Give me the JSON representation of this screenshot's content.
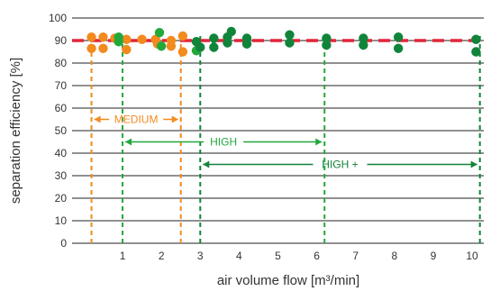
{
  "chart_data": {
    "type": "scatter",
    "title": "",
    "xlabel": "air volume flow [m³/min]",
    "ylabel": "separation efficiency [%]",
    "xlim": [
      -0.3,
      10.3
    ],
    "ylim": [
      0,
      100
    ],
    "x_ticks": [
      1,
      2,
      3,
      4,
      5,
      6,
      7,
      8,
      9,
      10
    ],
    "y_ticks": [
      0,
      10,
      20,
      30,
      40,
      50,
      60,
      70,
      80,
      90,
      100
    ],
    "grid": "horizontal",
    "reference_line": {
      "y": 90,
      "color": "#e2263a",
      "style": "dashed"
    },
    "colors": {
      "medium": "#f28a1e",
      "high": "#23a83c",
      "high_plus": "#10843a"
    },
    "ranges": [
      {
        "label": "MEDIUM",
        "from": 0.2,
        "to": 2.5,
        "y": 55,
        "color": "#f28a1e"
      },
      {
        "label": "HIGH",
        "from": 1.0,
        "to": 6.2,
        "y": 45,
        "color": "#23a83c"
      },
      {
        "label": "HIGH +",
        "from": 3.0,
        "to": 10.2,
        "y": 35,
        "color": "#10843a"
      }
    ],
    "vertical_markers": [
      {
        "x": 0.2,
        "color": "#f28a1e"
      },
      {
        "x": 2.5,
        "color": "#f28a1e"
      },
      {
        "x": 1.0,
        "color": "#23a83c"
      },
      {
        "x": 6.2,
        "color": "#23a83c"
      },
      {
        "x": 3.0,
        "color": "#10843a"
      },
      {
        "x": 10.2,
        "color": "#10843a"
      }
    ],
    "series": [
      {
        "color": "#f28a1e",
        "points": [
          {
            "x": 0.2,
            "y": 91.5
          },
          {
            "x": 0.2,
            "y": 86.5
          },
          {
            "x": 0.5,
            "y": 91.5
          },
          {
            "x": 0.5,
            "y": 86.5
          },
          {
            "x": 0.8,
            "y": 91.0
          },
          {
            "x": 1.1,
            "y": 90.5
          },
          {
            "x": 1.1,
            "y": 86.0
          },
          {
            "x": 1.5,
            "y": 90.5
          },
          {
            "x": 1.85,
            "y": 90.5
          },
          {
            "x": 1.9,
            "y": 88.5
          },
          {
            "x": 2.25,
            "y": 90.0
          },
          {
            "x": 2.25,
            "y": 87.5
          },
          {
            "x": 2.55,
            "y": 92.0
          },
          {
            "x": 2.55,
            "y": 85.0
          }
        ]
      },
      {
        "color": "#23a83c",
        "points": [
          {
            "x": 0.9,
            "y": 91.5
          },
          {
            "x": 0.9,
            "y": 89.5
          },
          {
            "x": 1.95,
            "y": 93.5
          },
          {
            "x": 2.0,
            "y": 87.5
          },
          {
            "x": 2.9,
            "y": 85.5
          }
        ]
      },
      {
        "color": "#10843a",
        "points": [
          {
            "x": 2.9,
            "y": 89.5
          },
          {
            "x": 3.0,
            "y": 87.0
          },
          {
            "x": 3.35,
            "y": 91.0
          },
          {
            "x": 3.35,
            "y": 87.0
          },
          {
            "x": 3.7,
            "y": 91.5
          },
          {
            "x": 3.7,
            "y": 89.0
          },
          {
            "x": 3.8,
            "y": 94.0
          },
          {
            "x": 4.2,
            "y": 91.0
          },
          {
            "x": 4.2,
            "y": 88.5
          },
          {
            "x": 5.3,
            "y": 92.5
          },
          {
            "x": 5.3,
            "y": 89.0
          },
          {
            "x": 6.25,
            "y": 91.0
          },
          {
            "x": 6.25,
            "y": 88.0
          },
          {
            "x": 7.2,
            "y": 91.0
          },
          {
            "x": 7.2,
            "y": 88.0
          },
          {
            "x": 8.1,
            "y": 91.5
          },
          {
            "x": 8.1,
            "y": 86.5
          },
          {
            "x": 10.1,
            "y": 90.5
          },
          {
            "x": 10.1,
            "y": 85.0
          }
        ]
      }
    ]
  }
}
